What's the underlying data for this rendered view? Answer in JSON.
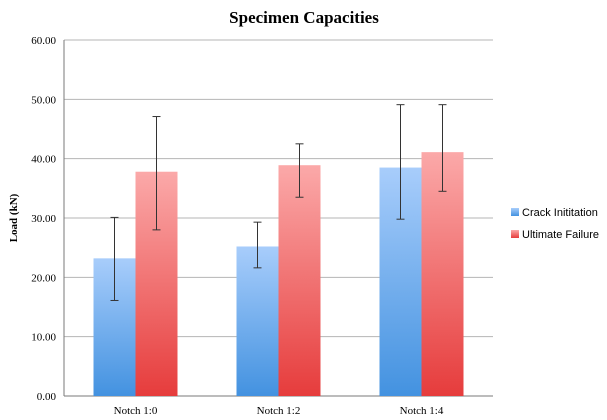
{
  "chart_data": {
    "type": "bar",
    "title": "Specimen Capacities",
    "xlabel": "",
    "ylabel": "Load (kN)",
    "ylim": [
      0,
      60
    ],
    "yticks": [
      "0.00",
      "10.00",
      "20.00",
      "30.00",
      "40.00",
      "50.00",
      "60.00"
    ],
    "categories": [
      "Notch 1:0",
      "Notch 1:2",
      "Notch 1:4"
    ],
    "grid": true,
    "legend_position": "right",
    "series": [
      {
        "name": "Crack Inititation",
        "values": [
          23.2,
          25.2,
          38.5
        ],
        "error_low": [
          16.1,
          21.6,
          29.8
        ],
        "error_high": [
          30.1,
          29.3,
          49.1
        ],
        "color_top": "#a8cdfb",
        "color_bottom": "#4392e0"
      },
      {
        "name": "Ultimate Failure",
        "values": [
          37.8,
          38.9,
          41.1
        ],
        "error_low": [
          28.0,
          33.5,
          34.5
        ],
        "error_high": [
          47.1,
          42.5,
          49.1
        ],
        "color_top": "#fba9a9",
        "color_bottom": "#e63c3c"
      }
    ]
  }
}
